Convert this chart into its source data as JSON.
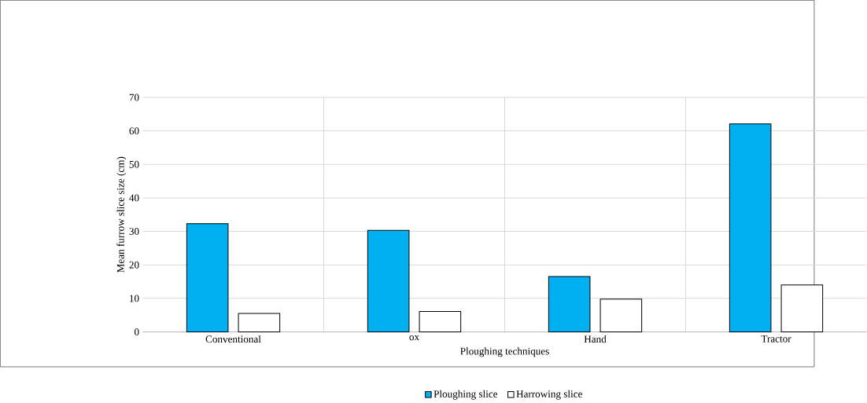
{
  "chart_data": {
    "type": "bar",
    "xlabel": "Ploughing techniques",
    "ylabel": "Mean furrow slice size (cm)",
    "categories": [
      "Conventional",
      "ox",
      "Hand",
      "Tractor"
    ],
    "series": [
      {
        "name": "Ploughing slice",
        "color": "#00b0f0",
        "values": [
          32.3,
          30.3,
          16.5,
          62.1
        ]
      },
      {
        "name": "Harrowing slice",
        "color": "#ffffff",
        "values": [
          5.5,
          6.1,
          9.8,
          14.0
        ]
      }
    ],
    "ylim": [
      0,
      70
    ],
    "yticks": [
      0,
      10,
      20,
      30,
      40,
      50,
      60,
      70
    ],
    "grid": true,
    "legend": "bottom"
  }
}
